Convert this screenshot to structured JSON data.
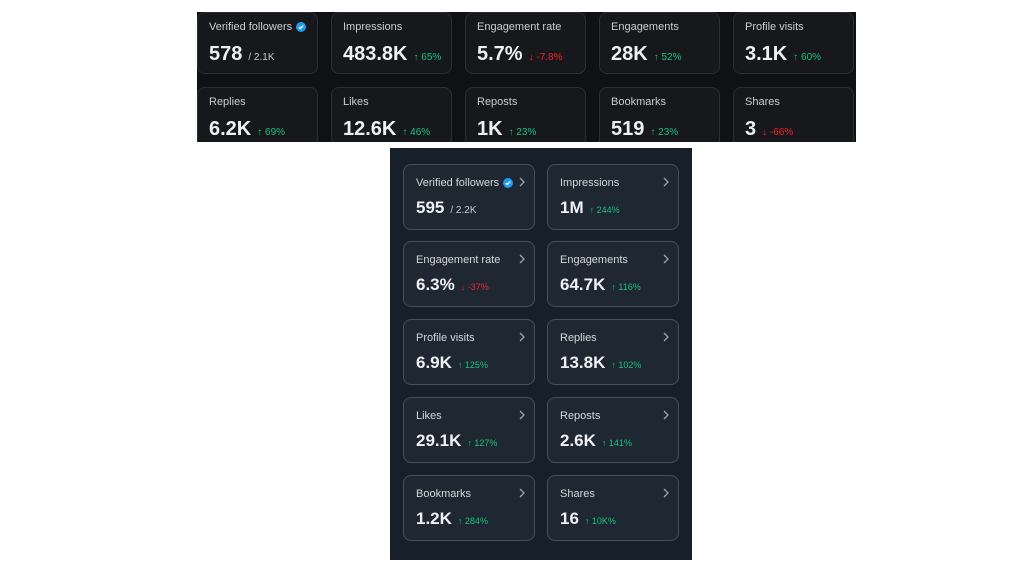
{
  "top_panel": {
    "cards": [
      {
        "label": "Verified followers",
        "value": "578",
        "sub": "/ 2.1K",
        "delta": "",
        "verified": true
      },
      {
        "label": "Impressions",
        "value": "483.8K",
        "delta": "↑ 65%",
        "trend": "up"
      },
      {
        "label": "Engagement rate",
        "value": "5.7%",
        "delta": "↓ -7.8%",
        "trend": "down"
      },
      {
        "label": "Engagements",
        "value": "28K",
        "delta": "↑ 52%",
        "trend": "up"
      },
      {
        "label": "Profile visits",
        "value": "3.1K",
        "delta": "↑ 60%",
        "trend": "up"
      },
      {
        "label": "Replies",
        "value": "6.2K",
        "delta": "↑ 69%",
        "trend": "up"
      },
      {
        "label": "Likes",
        "value": "12.6K",
        "delta": "↑ 46%",
        "trend": "up"
      },
      {
        "label": "Reposts",
        "value": "1K",
        "delta": "↑ 23%",
        "trend": "up"
      },
      {
        "label": "Bookmarks",
        "value": "519",
        "delta": "↑ 23%",
        "trend": "up"
      },
      {
        "label": "Shares",
        "value": "3",
        "delta": "↓ -66%",
        "trend": "down"
      }
    ]
  },
  "bottom_panel": {
    "cards": [
      {
        "label": "Verified followers",
        "value": "595",
        "sub": "/ 2.2K",
        "delta": "",
        "verified": true
      },
      {
        "label": "Impressions",
        "value": "1M",
        "delta": "↑ 244%",
        "trend": "up"
      },
      {
        "label": "Engagement rate",
        "value": "6.3%",
        "delta": "↓ -37%",
        "trend": "down"
      },
      {
        "label": "Engagements",
        "value": "64.7K",
        "delta": "↑ 116%",
        "trend": "up"
      },
      {
        "label": "Profile visits",
        "value": "6.9K",
        "delta": "↑ 125%",
        "trend": "up"
      },
      {
        "label": "Replies",
        "value": "13.8K",
        "delta": "↑ 102%",
        "trend": "up"
      },
      {
        "label": "Likes",
        "value": "29.1K",
        "delta": "↑ 127%",
        "trend": "up"
      },
      {
        "label": "Reposts",
        "value": "2.6K",
        "delta": "↑ 141%",
        "trend": "up"
      },
      {
        "label": "Bookmarks",
        "value": "1.2K",
        "delta": "↑ 284%",
        "trend": "up"
      },
      {
        "label": "Shares",
        "value": "16",
        "delta": "↑ 10K%",
        "trend": "up"
      }
    ]
  },
  "colors": {
    "up": "#19c37d",
    "down": "#f4212e",
    "verified_badge": "#1d9bf0"
  },
  "icons": {
    "verified": "verified-badge-icon",
    "chevron": "chevron-right-icon"
  }
}
